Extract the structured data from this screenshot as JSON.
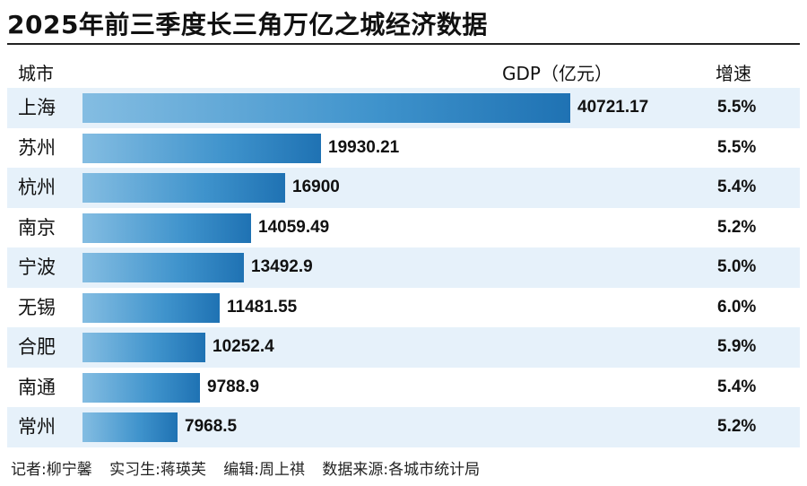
{
  "title": "2025年前三季度长三角万亿之城经济数据",
  "chart_data": {
    "type": "bar",
    "orientation": "horizontal",
    "title": "2025年前三季度长三角万亿之城经济数据",
    "column_headers": {
      "city": "城市",
      "gdp": "GDP（亿元）",
      "growth": "增速"
    },
    "categories": [
      "上海",
      "苏州",
      "杭州",
      "南京",
      "宁波",
      "无锡",
      "合肥",
      "南通",
      "常州"
    ],
    "values": [
      40721.17,
      19930.21,
      16900,
      14059.49,
      13492.9,
      11481.55,
      10252.4,
      9788.9,
      7968.5
    ],
    "value_labels": [
      "40721.17",
      "19930.21",
      "16900",
      "14059.49",
      "13492.9",
      "11481.55",
      "10252.4",
      "9788.9",
      "7968.5"
    ],
    "growth": [
      "5.5%",
      "5.5%",
      "5.4%",
      "5.2%",
      "5.0%",
      "6.0%",
      "5.9%",
      "5.4%",
      "5.2%"
    ],
    "xlim": [
      0,
      40721.17
    ]
  },
  "credits": [
    "记者:柳宁馨",
    "实习生:蒋瑛芙",
    "编辑:周上祺",
    "数据来源:各城市统计局"
  ],
  "colors": {
    "bar_light": "#84bde2",
    "bar_dark": "#1f72b3",
    "row_stripe": "#e6f1fa"
  }
}
